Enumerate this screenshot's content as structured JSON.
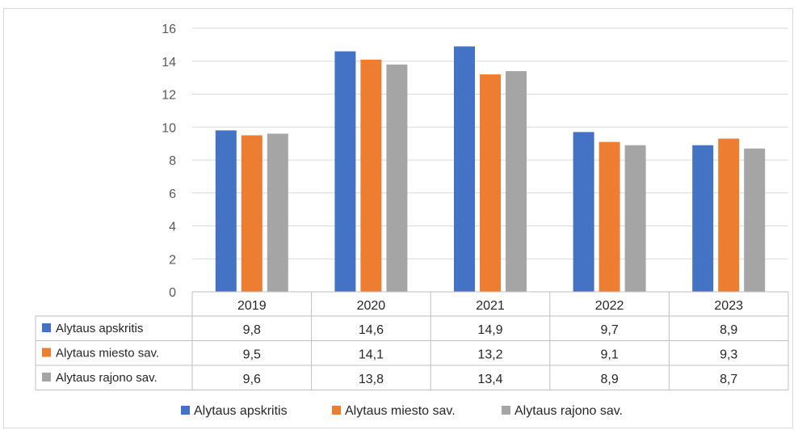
{
  "chart_data": {
    "type": "bar",
    "categories": [
      "2019",
      "2020",
      "2021",
      "2022",
      "2023"
    ],
    "series": [
      {
        "name": "Alytaus apskritis",
        "color": "#4472c4",
        "values": [
          9.8,
          14.6,
          14.9,
          9.7,
          8.9
        ],
        "labels": [
          "9,8",
          "14,6",
          "14,9",
          "9,7",
          "8,9"
        ]
      },
      {
        "name": "Alytaus miesto sav.",
        "color": "#ed7d31",
        "values": [
          9.5,
          14.1,
          13.2,
          9.1,
          9.3
        ],
        "labels": [
          "9,5",
          "14,1",
          "13,2",
          "9,1",
          "9,3"
        ]
      },
      {
        "name": "Alytaus rajono sav.",
        "color": "#a5a5a5",
        "values": [
          9.6,
          13.8,
          13.4,
          8.9,
          8.7
        ],
        "labels": [
          "9,6",
          "13,8",
          "13,4",
          "8,9",
          "8,7"
        ]
      }
    ],
    "yticks": [
      "0",
      "2",
      "4",
      "6",
      "8",
      "10",
      "12",
      "14",
      "16"
    ],
    "ylim": [
      0,
      16
    ],
    "grid": true,
    "data_table": true,
    "legend_position": "bottom"
  }
}
